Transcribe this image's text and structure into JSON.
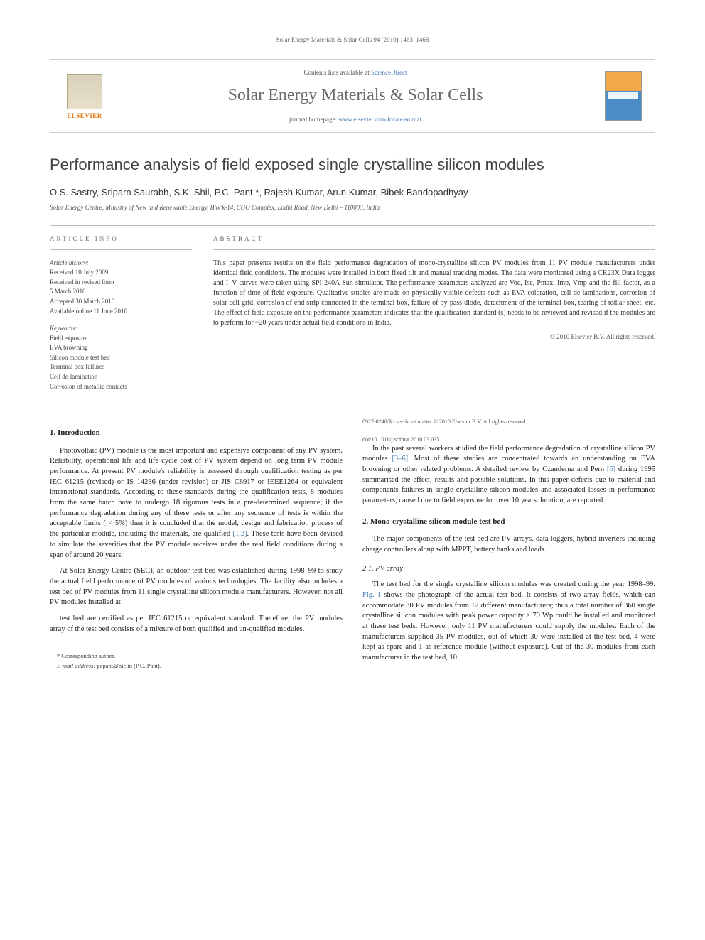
{
  "running_head": "Solar Energy Materials & Solar Cells 94 (2010) 1463–1468",
  "header": {
    "contents_prefix": "Contents lists available at ",
    "contents_link": "ScienceDirect",
    "journal_name": "Solar Energy Materials & Solar Cells",
    "homepage_prefix": "journal homepage: ",
    "homepage_link": "www.elsevier.com/locate/solmat",
    "publisher_logo_text": "ELSEVIER"
  },
  "title": "Performance analysis of field exposed single crystalline silicon modules",
  "authors": "O.S. Sastry, Sriparn Saurabh, S.K. Shil, P.C. Pant *, Rajesh Kumar, Arun Kumar, Bibek Bandopadhyay",
  "affiliation": "Solar Energy Centre, Ministry of New and Renewable Energy, Block-14, CGO Complex, Lodhi Road, New Delhi – 110003, India",
  "article_info_label": "article info",
  "abstract_label": "abstract",
  "history": {
    "label": "Article history:",
    "received": "Received 10 July 2009",
    "revised": "Received in revised form",
    "revised_date": "5 March 2010",
    "accepted": "Accepted 30 March 2010",
    "online": "Available online 11 June 2010"
  },
  "keywords": {
    "label": "Keywords:",
    "items": [
      "Field exposure",
      "EVA browning",
      "Silicon module test bed",
      "Terminal box failures",
      "Cell de-lamination",
      "Corrosion of metallic contacts"
    ]
  },
  "abstract_text": "This paper presents results on the field performance degradation of mono-crystalline silicon PV modules from 11 PV module manufacturers under identical field conditions. The modules were installed in both fixed tilt and manual tracking modes. The data were monitored using a CR23X Data logger and I–V curves were taken using SPI 240A Sun simulator. The performance parameters analyzed are Voc, Isc, Pmax, Imp, Vmp and the fill factor, as a function of time of field exposure. Qualitative studies are made on physically visible defects such as EVA coloration, cell de-laminations, corrosion of solar cell grid, corrosion of end strip connected in the terminal box, failure of by-pass diode, detachment of the terminal box, tearing of tedlar sheet, etc. The effect of field exposure on the performance parameters indicates that the qualification standard (s) needs to be reviewed and revised if the modules are to perform for ~20 years under actual field conditions in India.",
  "copyright": "© 2010 Elsevier B.V. All rights reserved.",
  "body": {
    "s1_heading": "1.  Introduction",
    "s1_p1": "Photovoltaic (PV) module is the most important and expensive component of any PV system. Reliability, operational life and life cycle cost of PV system depend on long term PV module performance. At present PV module's reliability is assessed through qualification testing as per IEC 61215 (revised) or IS 14286 (under revision) or JIS C8917 or IEEE1264 or equivalent international standards. According to these standards during the qualification tests, 8 modules from the same batch have to undergo 18 rigorous tests in a pre-determined sequence; if the performance degradation during any of these tests or after any sequence of tests is within the acceptable limits ( < 5%) then it is concluded that the model, design and fabrication process of the particular module, including the materials, are qualified ",
    "s1_p1_ref": "[1,2]",
    "s1_p1_tail": ". These tests have been devised to simulate the severities that the PV module receives under the real field conditions during a span of around 20 years.",
    "s1_p2": "At Solar Energy Centre (SEC), an outdoor test bed was established during 1998–99 to study the actual field performance of PV modules of various technologies. The facility also includes a test bed of PV modules from 11 single crystalline silicon module manufacturers. However, not all PV modules installed at",
    "s1_p3": "test bed are certified as per IEC 61215 or equivalent standard. Therefore, the PV modules array of the test bed consists of a mixture of both qualified and un-qualified modules.",
    "s1_p4_a": "In the past several workers studied the field performance degradation of crystalline silicon PV modules ",
    "s1_p4_ref1": "[3–6]",
    "s1_p4_b": ". Most of these studies are concentrated towards an understanding on EVA browning or other related problems. A detailed review by Czanderna and Pern ",
    "s1_p4_ref2": "[6]",
    "s1_p4_c": " during 1995 summarised the effect, results and possible solutions. In this paper defects due to material and components failures in single crystalline silicon modules and associated losses in performance parameters, caused due to field exposure for over 10 years duration, are reported.",
    "s2_heading": "2.  Mono-crystalline silicon module test bed",
    "s2_p1": "The major components of the test bed are PV arrays, data loggers, hybrid inverters including charge controllers along with MPPT, battery banks and loads.",
    "s21_heading": "2.1.  PV array",
    "s21_p1_a": "The test bed for the single crystalline silicon modules was created during the year 1998–99. ",
    "s21_p1_ref": "Fig. 1",
    "s21_p1_b": " shows the photograph of the actual test bed. It consists of two array fields, which can accommodate 30 PV modules from 12 different manufacturers; thus a total number of 360 single crystalline silicon modules with peak power capacity ≥ 70 Wp could be installed and monitored at these test beds. However, only 11 PV manufacturers could supply the modules. Each of the manufacturers supplied 35 PV modules, out of which 30 were installed at the test bed, 4 were kept as spare and 1 as reference module (without exposure). Out of the 30 modules from each manufacturer in the test bed, 10"
  },
  "footnotes": {
    "corr": "* Corresponding author.",
    "email_label": "E-mail address: ",
    "email": "pcpant@nic.in (P.C. Pant)."
  },
  "footer": {
    "line1": "0927-0248/$ - see front matter © 2010 Elsevier B.V. All rights reserved.",
    "line2": "doi:10.1016/j.solmat.2010.03.035"
  },
  "colors": {
    "link": "#4a7db5",
    "elsevier_orange": "#e67817",
    "text": "#333333",
    "rule": "#bbbbbb"
  }
}
